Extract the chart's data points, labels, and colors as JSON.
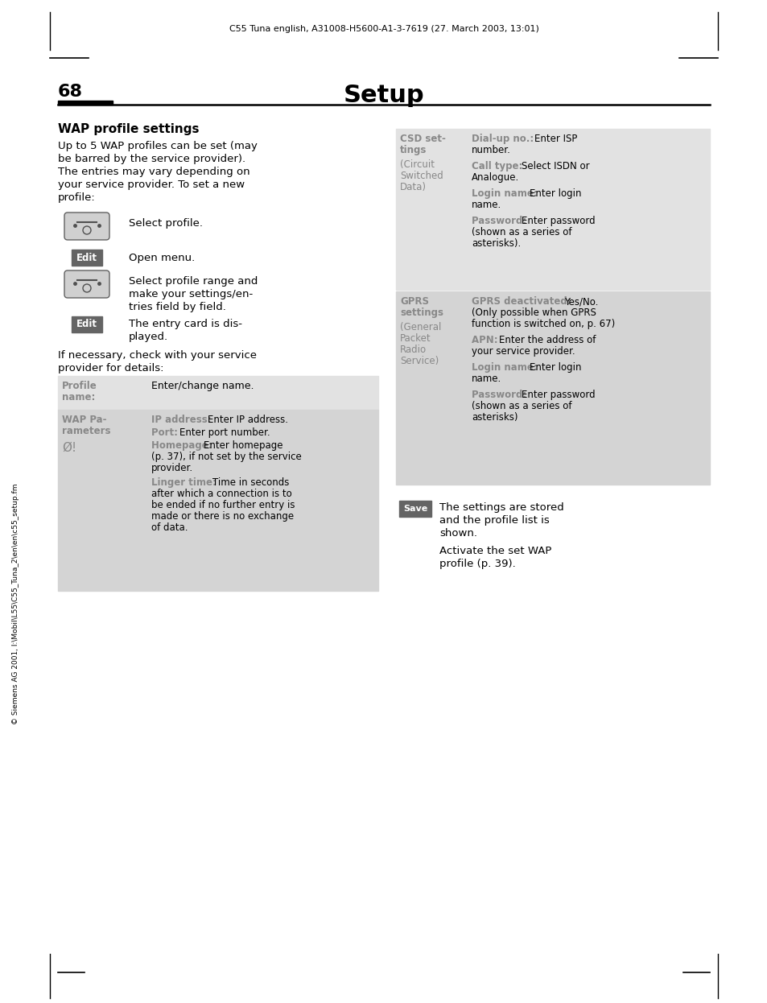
{
  "header_text": "C55 Tuna english, A31008-H5600-A1-3-7619 (27. March 2003, 13:01)",
  "page_number": "68",
  "title": "Setup",
  "section_title": "WAP profile settings",
  "bg_color": "#ffffff",
  "table_bg_light": "#e2e2e2",
  "table_bg_dark": "#d4d4d4",
  "gray_label": "#888888",
  "black": "#000000",
  "white": "#ffffff",
  "edit_bg": "#646464",
  "save_bg": "#646464"
}
